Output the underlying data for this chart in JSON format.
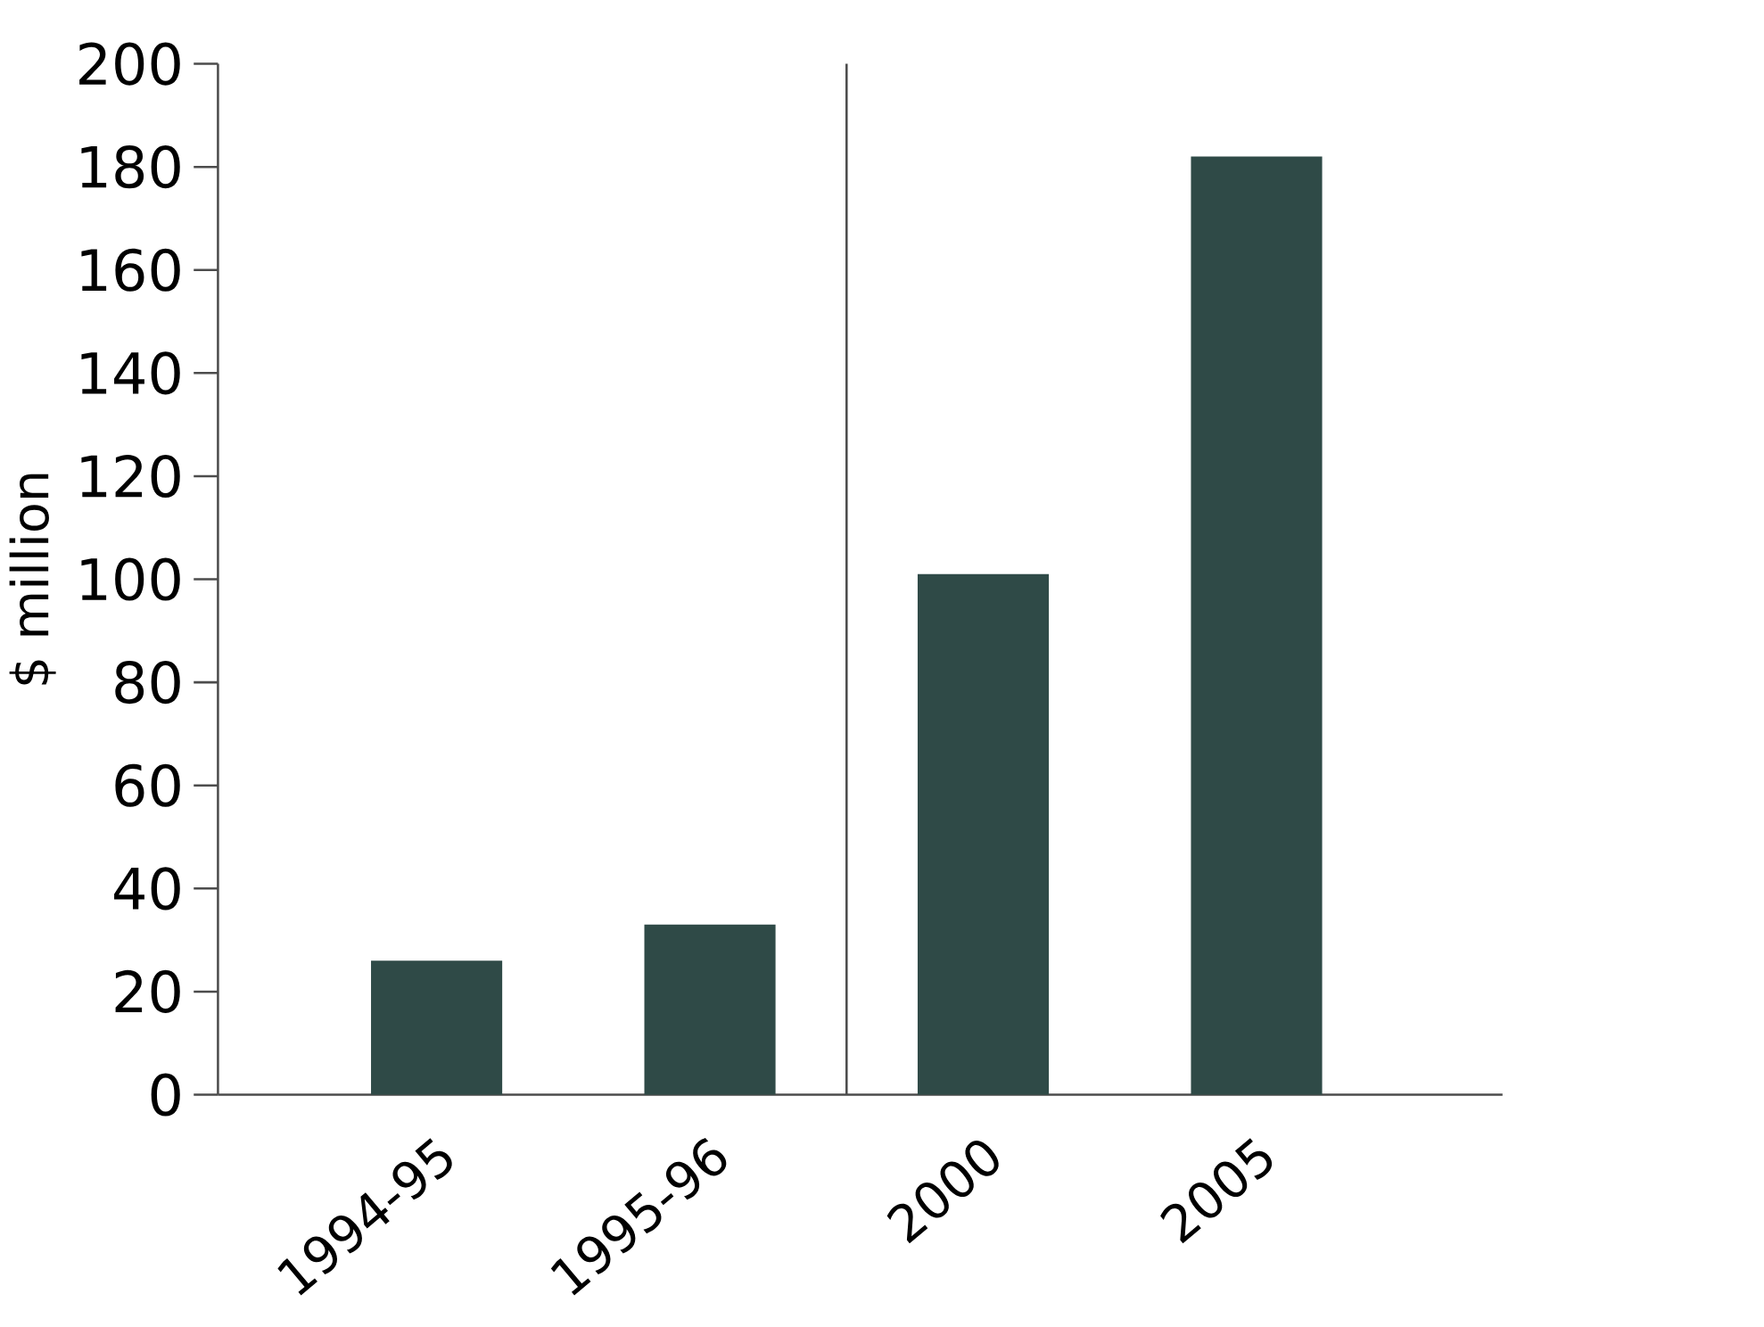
{
  "chart_data": {
    "type": "bar",
    "categories": [
      "1994-95",
      "1995-96",
      "2000",
      "2005"
    ],
    "values": [
      26,
      33,
      101,
      182
    ],
    "color": "#2f4a47",
    "ylabel": "$ million",
    "ylim": [
      0,
      200
    ],
    "yticks": [
      0,
      20,
      40,
      60,
      80,
      100,
      120,
      140,
      160,
      180,
      200
    ]
  }
}
